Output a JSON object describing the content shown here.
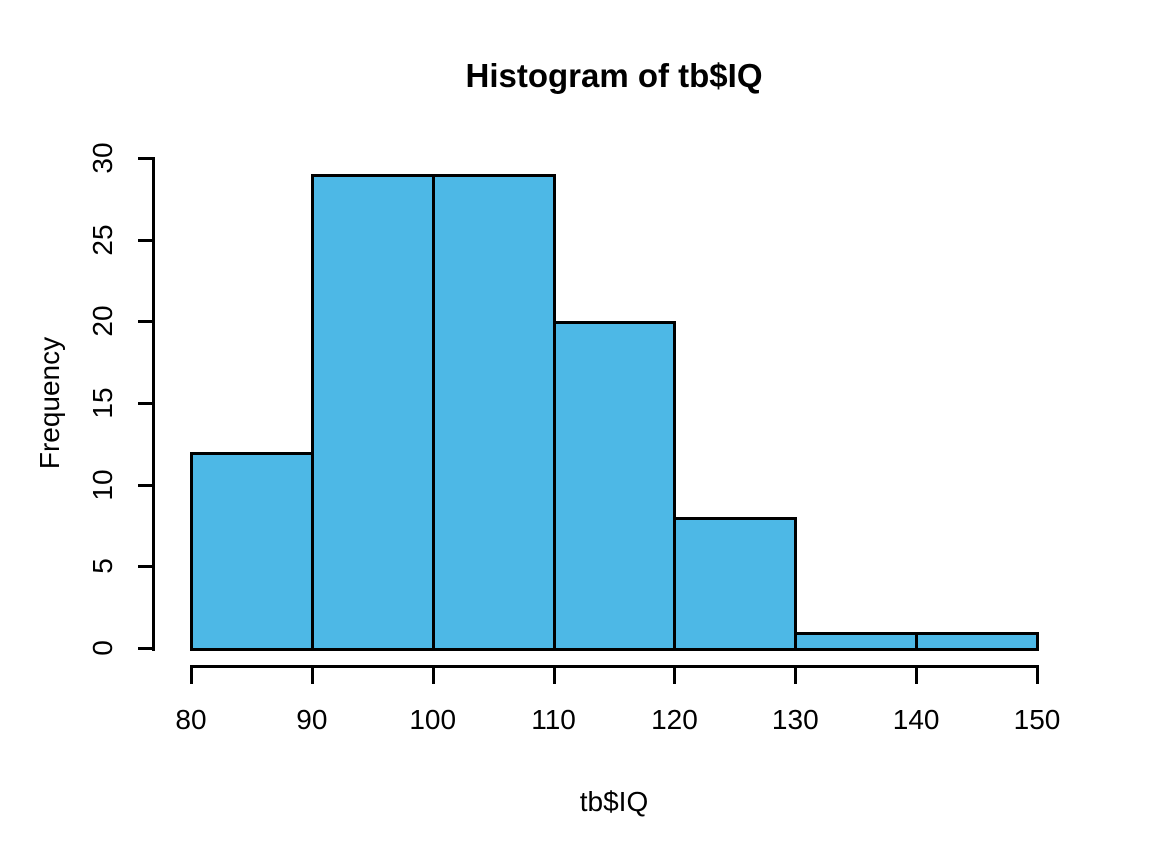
{
  "chart_data": {
    "type": "bar",
    "subtype": "histogram",
    "title": "Histogram of tb$IQ",
    "xlabel": "tb$IQ",
    "ylabel": "Frequency",
    "bin_edges": [
      80,
      90,
      100,
      110,
      120,
      130,
      140,
      150
    ],
    "counts": [
      12,
      29,
      29,
      20,
      8,
      1,
      1
    ],
    "x_ticks": [
      "80",
      "90",
      "100",
      "110",
      "120",
      "130",
      "140",
      "150"
    ],
    "x_tick_values": [
      80,
      90,
      100,
      110,
      120,
      130,
      140,
      150
    ],
    "y_ticks": [
      "0",
      "5",
      "10",
      "15",
      "20",
      "25",
      "30"
    ],
    "y_tick_values": [
      0,
      5,
      10,
      15,
      20,
      25,
      30
    ],
    "xlim": [
      80,
      150
    ],
    "ylim": [
      0,
      30
    ],
    "grid": false,
    "bar_fill_color": "#4DB8E6",
    "bar_border_color": "#000000",
    "axis_color": "#000000",
    "text_color": "#000000",
    "background_color": "#FFFFFF"
  }
}
